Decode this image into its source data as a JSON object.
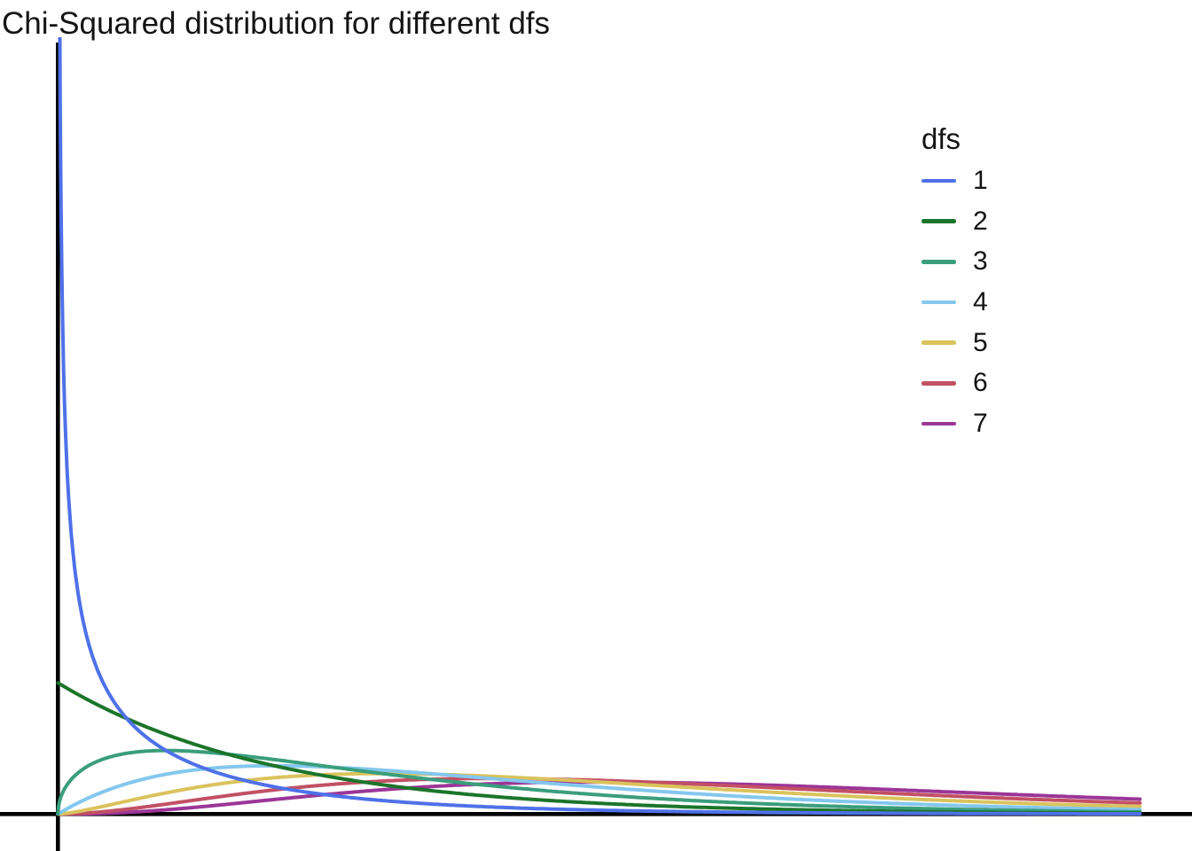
{
  "chart_data": {
    "type": "line",
    "title": "Chi-Squared distribution for different dfs",
    "subtitle": "",
    "xlabel": "",
    "ylabel": "",
    "distribution": "chi-squared probability density function",
    "xlim": [
      0,
      10.5
    ],
    "ylim": [
      0,
      2.95
    ],
    "x_drawn_max": 10,
    "grid": false,
    "axis_color": "#000000",
    "background": "#ffffff",
    "legend": {
      "title": "dfs",
      "position": "right"
    },
    "x_samples": [
      0,
      0.1,
      0.25,
      0.5,
      1,
      1.5,
      2,
      3,
      4,
      5,
      6,
      7,
      8,
      9,
      10
    ],
    "series": [
      {
        "name": "1",
        "df": 1,
        "color": "#4E71E8",
        "values": [
          null,
          1.2,
          0.704,
          0.439,
          0.242,
          0.154,
          0.104,
          0.051,
          0.027,
          0.0146,
          0.0081,
          0.0046,
          0.0026,
          0.0015,
          0.0009
        ]
      },
      {
        "name": "2",
        "df": 2,
        "color": "#1B752A",
        "values": [
          0.5,
          0.476,
          0.441,
          0.389,
          0.303,
          0.236,
          0.184,
          0.112,
          0.068,
          0.041,
          0.025,
          0.015,
          0.009,
          0.0055,
          0.0034
        ]
      },
      {
        "name": "3",
        "df": 3,
        "color": "#3A9E7C",
        "values": [
          0,
          0.12,
          0.176,
          0.22,
          0.242,
          0.231,
          0.208,
          0.154,
          0.108,
          0.073,
          0.049,
          0.032,
          0.021,
          0.013,
          0.0085
        ]
      },
      {
        "name": "4",
        "df": 4,
        "color": "#84C7EE",
        "values": [
          0,
          0.024,
          0.055,
          0.097,
          0.152,
          0.177,
          0.184,
          0.167,
          0.135,
          0.103,
          0.075,
          0.053,
          0.037,
          0.025,
          0.017
        ]
      },
      {
        "name": "5",
        "df": 5,
        "color": "#DAC35D",
        "values": [
          0,
          0.004,
          0.015,
          0.037,
          0.081,
          0.115,
          0.138,
          0.154,
          0.144,
          0.122,
          0.097,
          0.074,
          0.055,
          0.04,
          0.028
        ]
      },
      {
        "name": "6",
        "df": 6,
        "color": "#C25064",
        "values": [
          0,
          0.0006,
          0.0034,
          0.012,
          0.038,
          0.066,
          0.092,
          0.126,
          0.135,
          0.128,
          0.112,
          0.093,
          0.073,
          0.056,
          0.042
        ]
      },
      {
        "name": "7",
        "df": 7,
        "color": "#9B3697",
        "values": [
          0,
          0.0001,
          0.0007,
          0.0037,
          0.016,
          0.035,
          0.055,
          0.093,
          0.115,
          0.122,
          0.117,
          0.104,
          0.088,
          0.072,
          0.057
        ]
      }
    ]
  }
}
